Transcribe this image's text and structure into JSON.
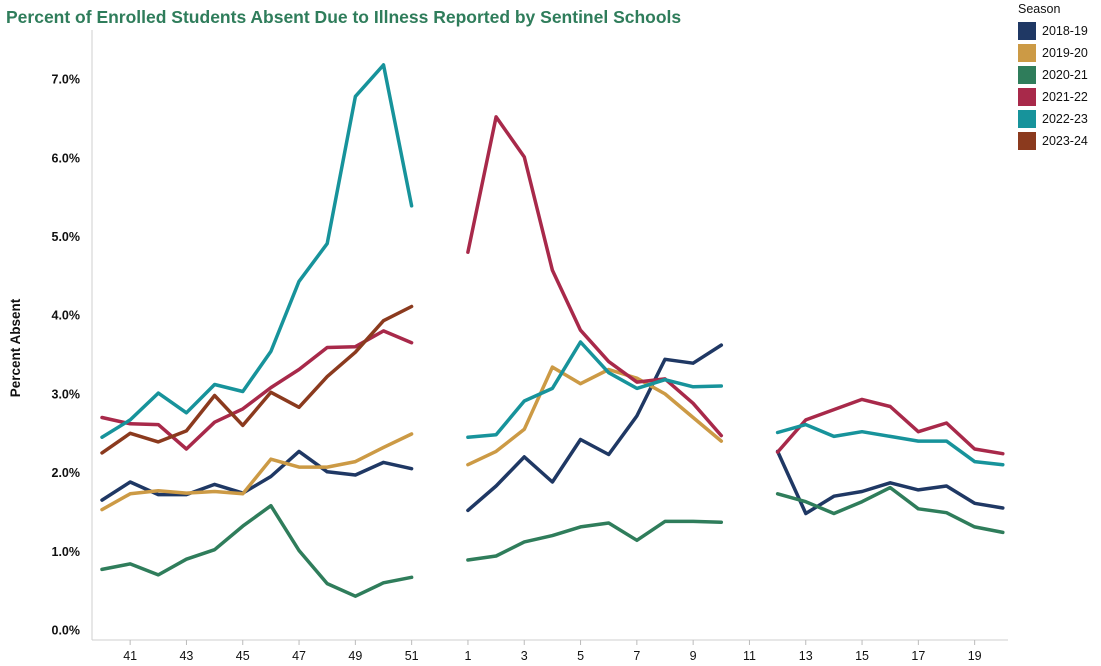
{
  "chart_data": {
    "type": "line",
    "title": "Percent of Enrolled Students Absent Due to Illness Reported by Sentinel Schools",
    "ylabel": "Percent Absent",
    "xlabel": "",
    "ylim": [
      0,
      7.5
    ],
    "y_ticks": [
      "0.0%",
      "1.0%",
      "2.0%",
      "3.0%",
      "4.0%",
      "5.0%",
      "6.0%",
      "7.0%"
    ],
    "y_tick_values": [
      0,
      1,
      2,
      3,
      4,
      5,
      6,
      7
    ],
    "x_weeks": [
      40,
      41,
      42,
      43,
      44,
      45,
      46,
      47,
      48,
      49,
      50,
      51,
      52,
      1,
      2,
      3,
      4,
      5,
      6,
      7,
      8,
      9,
      10,
      11,
      12,
      13,
      14,
      15,
      16,
      17,
      18,
      19,
      20
    ],
    "x_tick_labels": [
      "41",
      "43",
      "45",
      "47",
      "49",
      "51",
      "1",
      "3",
      "5",
      "7",
      "9",
      "11",
      "13",
      "15",
      "17",
      "19"
    ],
    "grid": false,
    "legend": {
      "title": "Season",
      "position": "top-right"
    },
    "series": [
      {
        "name": "2018-19",
        "color": "#1f3864",
        "values": [
          1.65,
          1.88,
          1.72,
          1.72,
          1.85,
          1.74,
          1.95,
          2.27,
          2.01,
          1.97,
          2.13,
          2.05,
          null,
          1.52,
          1.83,
          2.2,
          1.88,
          2.42,
          2.23,
          2.72,
          3.44,
          3.39,
          3.62,
          null,
          2.27,
          1.48,
          1.7,
          1.76,
          1.87,
          1.78,
          1.83,
          1.61,
          1.55
        ]
      },
      {
        "name": "2019-20",
        "color": "#cc9a45",
        "values": [
          1.53,
          1.73,
          1.77,
          1.74,
          1.76,
          1.73,
          2.17,
          2.07,
          2.07,
          2.14,
          2.32,
          2.49,
          null,
          2.1,
          2.27,
          2.55,
          3.34,
          3.13,
          3.31,
          3.2,
          3.0,
          2.7,
          2.4,
          null,
          null,
          null,
          null,
          null,
          null,
          null,
          null,
          null,
          null
        ]
      },
      {
        "name": "2020-21",
        "color": "#2f7d5b",
        "values": [
          0.77,
          0.84,
          0.7,
          0.9,
          1.02,
          1.32,
          1.58,
          1.01,
          0.59,
          0.43,
          0.6,
          0.67,
          null,
          0.89,
          0.94,
          1.12,
          1.2,
          1.31,
          1.36,
          1.14,
          1.38,
          1.38,
          1.37,
          null,
          1.73,
          1.63,
          1.48,
          1.63,
          1.81,
          1.54,
          1.49,
          1.31,
          1.24
        ]
      },
      {
        "name": "2021-22",
        "color": "#a8294a",
        "values": [
          2.7,
          2.62,
          2.61,
          2.3,
          2.64,
          2.81,
          3.08,
          3.31,
          3.59,
          3.6,
          3.8,
          3.65,
          null,
          4.8,
          6.52,
          6.01,
          4.57,
          3.81,
          3.41,
          3.15,
          3.19,
          2.88,
          2.47,
          null,
          2.26,
          2.67,
          2.8,
          2.93,
          2.84,
          2.52,
          2.63,
          2.3,
          2.24
        ]
      },
      {
        "name": "2022-23",
        "color": "#17939b",
        "values": [
          2.45,
          2.67,
          3.01,
          2.76,
          3.12,
          3.03,
          3.54,
          4.43,
          4.91,
          6.78,
          7.18,
          5.39,
          null,
          2.45,
          2.48,
          2.91,
          3.07,
          3.66,
          3.27,
          3.07,
          3.18,
          3.09,
          3.1,
          null,
          2.51,
          2.61,
          2.46,
          2.52,
          2.46,
          2.4,
          2.4,
          2.14,
          2.1
        ]
      },
      {
        "name": "2023-24",
        "color": "#8b3a1e",
        "values": [
          2.25,
          2.5,
          2.39,
          2.53,
          2.98,
          2.6,
          3.02,
          2.83,
          3.22,
          3.53,
          3.93,
          4.11,
          null,
          null,
          null,
          null,
          null,
          null,
          null,
          null,
          null,
          null,
          null,
          null,
          null,
          null,
          null,
          null,
          null,
          null,
          null,
          null,
          null
        ]
      }
    ]
  }
}
